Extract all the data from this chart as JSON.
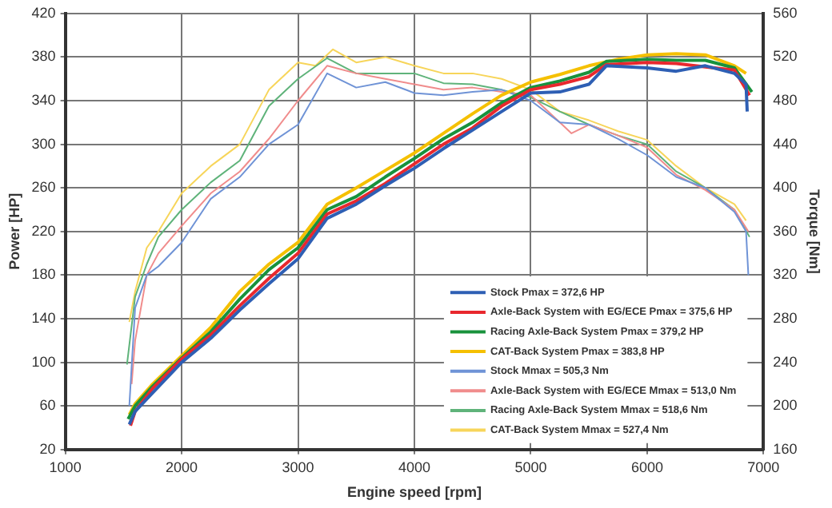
{
  "chart_data": {
    "type": "line",
    "xlabel": "Engine speed [rpm]",
    "ylabel": "Power [HP]",
    "y2label": "Torque [Nm]",
    "xlim": [
      1000,
      7000
    ],
    "xticks": [
      1000,
      2000,
      3000,
      4000,
      5000,
      6000,
      7000
    ],
    "ylim": [
      20,
      420
    ],
    "yticks": [
      20,
      60,
      100,
      140,
      180,
      220,
      260,
      300,
      340,
      380,
      420
    ],
    "y2lim": [
      160,
      560
    ],
    "y2ticks": [
      160,
      200,
      240,
      280,
      320,
      360,
      400,
      440,
      480,
      520,
      560
    ],
    "grid": true,
    "legend": "bottom right",
    "marker": "none",
    "line_style": "solid",
    "series": [
      {
        "name": "Stock Pmax = 372,6 HP",
        "color": "#2e5fb4",
        "x": [
          1550,
          1600,
          1750,
          2000,
          2250,
          2500,
          2750,
          3000,
          3250,
          3500,
          3750,
          4000,
          4250,
          4500,
          4750,
          5000,
          5250,
          5500,
          5650,
          6000,
          6250,
          6500,
          6750,
          6850,
          6860
        ],
        "values": [
          43,
          55,
          72,
          100,
          122,
          148,
          172,
          195,
          232,
          245,
          262,
          278,
          296,
          313,
          330,
          347,
          348,
          355,
          372,
          370,
          367,
          372,
          365,
          355,
          330
        ]
      },
      {
        "name": "Axle-Back System with EG/ECE Pmax = 375,6 HP",
        "color": "#e8282e",
        "x": [
          1560,
          1600,
          1750,
          2000,
          2250,
          2500,
          2750,
          3000,
          3250,
          3500,
          3750,
          4000,
          4250,
          4500,
          4750,
          5000,
          5250,
          5500,
          5650,
          6000,
          6250,
          6500,
          6750,
          6880
        ],
        "values": [
          42,
          55,
          76,
          103,
          125,
          152,
          177,
          200,
          236,
          248,
          264,
          282,
          300,
          315,
          335,
          350,
          355,
          362,
          373,
          375,
          374,
          371,
          368,
          345
        ]
      },
      {
        "name": "Racing Axle-Back System Pmax = 379,2 HP",
        "color": "#18923c",
        "x": [
          1540,
          1600,
          1750,
          2000,
          2250,
          2500,
          2750,
          3000,
          3250,
          3500,
          3750,
          4000,
          4250,
          4500,
          4750,
          5000,
          5250,
          5500,
          5650,
          6000,
          6250,
          6500,
          6750,
          6900
        ],
        "values": [
          48,
          60,
          78,
          104,
          128,
          158,
          185,
          205,
          240,
          252,
          270,
          287,
          305,
          320,
          338,
          352,
          358,
          366,
          376,
          378,
          377,
          377,
          370,
          348
        ]
      },
      {
        "name": "CAT-Back System Pmax = 383,8 HP",
        "color": "#f5c000",
        "x": [
          1550,
          1600,
          1750,
          2000,
          2250,
          2500,
          2750,
          3000,
          3250,
          3500,
          3750,
          4000,
          4250,
          4500,
          4750,
          5000,
          5250,
          5500,
          5750,
          6000,
          6250,
          6500,
          6750,
          6850
        ],
        "values": [
          52,
          62,
          80,
          106,
          132,
          165,
          190,
          210,
          245,
          260,
          276,
          292,
          310,
          328,
          345,
          357,
          364,
          372,
          378,
          382,
          383,
          382,
          372,
          365
        ]
      },
      {
        "name": "Stock Mmax = 505,3 Nm",
        "color": "#6f93d6",
        "axis": "y2",
        "x": [
          1550,
          1600,
          1700,
          1800,
          2000,
          2250,
          2500,
          2750,
          3000,
          3250,
          3500,
          3750,
          4000,
          4250,
          4500,
          4750,
          5000,
          5250,
          5500,
          5750,
          6000,
          6250,
          6500,
          6750,
          6850,
          6870
        ],
        "values": [
          200,
          290,
          320,
          328,
          350,
          390,
          410,
          440,
          458,
          505,
          492,
          497,
          487,
          485,
          488,
          490,
          480,
          460,
          458,
          445,
          430,
          410,
          400,
          378,
          360,
          320
        ]
      },
      {
        "name": "Axle-Back System with EG/ECE Mmax = 513,0 Nm",
        "color": "#f08c8c",
        "axis": "y2",
        "x": [
          1570,
          1600,
          1700,
          1800,
          2000,
          2250,
          2500,
          2750,
          3000,
          3250,
          3500,
          3750,
          4000,
          4250,
          4500,
          4750,
          5000,
          5250,
          5350,
          5500,
          5750,
          6000,
          6250,
          6500,
          6750,
          6870
        ],
        "values": [
          220,
          260,
          320,
          340,
          365,
          395,
          415,
          445,
          480,
          512,
          505,
          500,
          495,
          490,
          492,
          488,
          485,
          460,
          450,
          458,
          448,
          437,
          412,
          398,
          380,
          360
        ]
      },
      {
        "name": "Racing Axle-Back System Mmax = 518,6 Nm",
        "color": "#5fb37a",
        "axis": "y2",
        "x": [
          1530,
          1600,
          1700,
          1800,
          2000,
          2250,
          2500,
          2750,
          3000,
          3250,
          3500,
          3750,
          4000,
          4250,
          4500,
          4750,
          5000,
          5250,
          5500,
          5750,
          6000,
          6250,
          6500,
          6750,
          6880
        ],
        "values": [
          238,
          300,
          330,
          355,
          380,
          405,
          425,
          475,
          500,
          519,
          505,
          505,
          505,
          496,
          495,
          490,
          483,
          470,
          458,
          448,
          440,
          415,
          400,
          380,
          355
        ]
      },
      {
        "name": "CAT-Back System Mmax = 527,4 Nm",
        "color": "#f7d55a",
        "axis": "y2",
        "x": [
          1550,
          1600,
          1700,
          1800,
          2000,
          2250,
          2500,
          2750,
          3000,
          3150,
          3300,
          3500,
          3750,
          4000,
          4250,
          4500,
          4750,
          5000,
          5250,
          5500,
          5750,
          6000,
          6250,
          6500,
          6750,
          6850
        ],
        "values": [
          277,
          305,
          345,
          360,
          395,
          420,
          440,
          490,
          515,
          512,
          527,
          515,
          520,
          512,
          505,
          505,
          500,
          490,
          470,
          462,
          452,
          444,
          420,
          400,
          385,
          370
        ]
      }
    ]
  }
}
